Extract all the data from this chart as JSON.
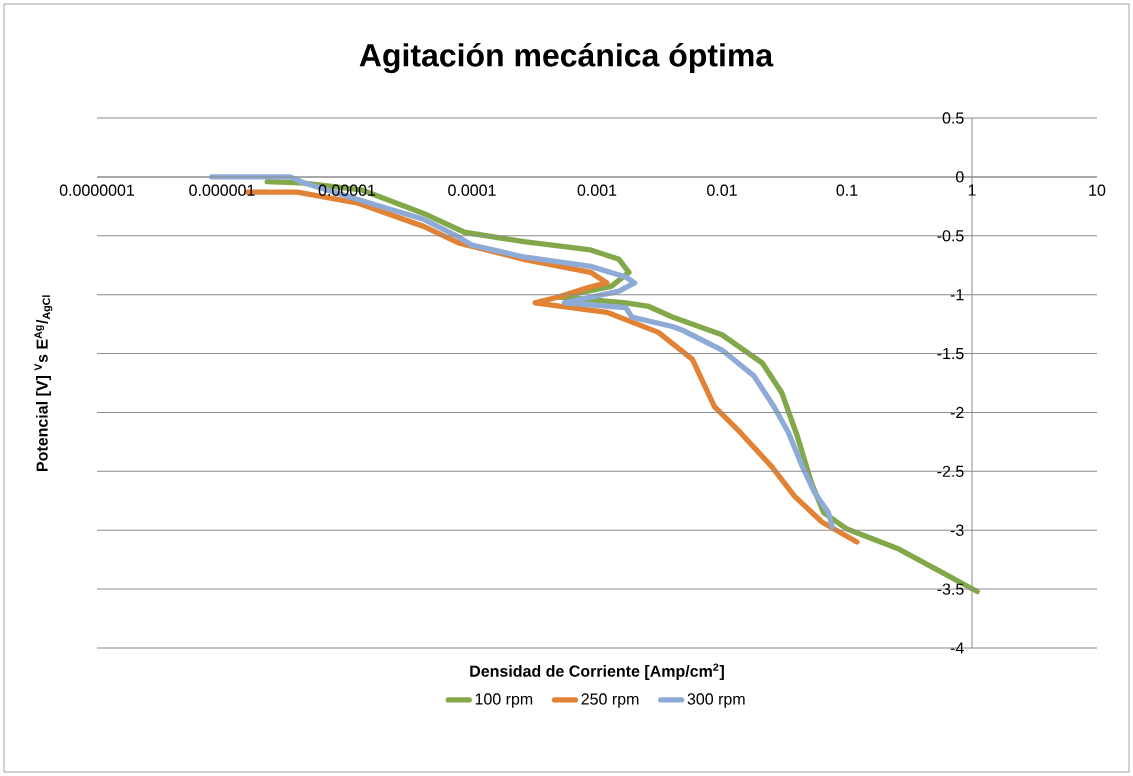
{
  "chart_data": {
    "type": "line",
    "title": "Agitación mecánica óptima",
    "xlabel": "Densidad de Corriente [Amp/cm$^{2}$]",
    "ylabel": "Potencial [V] $^{V}$s E$^{Ag}$/$_{AgCl}$",
    "log": "x",
    "grid": "y",
    "legend": "bottom",
    "marker": "none",
    "line_style": "solid",
    "xlim": [
      1e-07,
      10
    ],
    "ylim": [
      -4,
      0.5
    ],
    "xticks": [
      {
        "value": 1e-07,
        "label": "0.0000001"
      },
      {
        "value": 1e-06,
        "label": "0.000001"
      },
      {
        "value": 1e-05,
        "label": "0.00001"
      },
      {
        "value": 0.0001,
        "label": "0.0001"
      },
      {
        "value": 0.001,
        "label": "0.001"
      },
      {
        "value": 0.01,
        "label": "0.01"
      },
      {
        "value": 0.1,
        "label": "0.1"
      },
      {
        "value": 1,
        "label": "1"
      },
      {
        "value": 10,
        "label": "10"
      }
    ],
    "yticks": [
      {
        "value": 0.5,
        "label": "0.5"
      },
      {
        "value": 0,
        "label": "0"
      },
      {
        "value": -0.5,
        "label": "-0.5"
      },
      {
        "value": -1,
        "label": "-1"
      },
      {
        "value": -1.5,
        "label": "-1.5"
      },
      {
        "value": -2,
        "label": "-2"
      },
      {
        "value": -2.5,
        "label": "-2.5"
      },
      {
        "value": -3,
        "label": "-3"
      },
      {
        "value": -3.5,
        "label": "-3.5"
      },
      {
        "value": -4,
        "label": "-4"
      }
    ],
    "series": [
      {
        "name": "100 rpm",
        "color": "#82a84a",
        "x": [
          2.3e-06,
          4.3e-06,
          1.3e-05,
          4.1e-05,
          8.7e-05,
          0.00026,
          0.00089,
          0.0015,
          0.0018,
          0.0013,
          0.00049,
          0.0017,
          0.0026,
          0.004,
          0.01,
          0.021,
          0.03,
          0.04,
          0.052,
          0.065,
          0.1,
          0.26,
          0.58,
          1.1
        ],
        "values": [
          -0.04,
          -0.05,
          -0.11,
          -0.31,
          -0.47,
          -0.55,
          -0.62,
          -0.7,
          -0.81,
          -0.93,
          -1.02,
          -1.07,
          -1.1,
          -1.19,
          -1.34,
          -1.58,
          -1.83,
          -2.2,
          -2.6,
          -2.85,
          -2.99,
          -3.16,
          -3.36,
          -3.52
        ]
      },
      {
        "name": "250 rpm",
        "color": "#e28234",
        "x": [
          1.6e-06,
          4e-06,
          1.2e-05,
          4.1e-05,
          7.8e-05,
          0.00026,
          0.00089,
          0.0012,
          0.00085,
          0.00049,
          0.00032,
          0.0012,
          0.0031,
          0.0058,
          0.0087,
          0.014,
          0.025,
          0.038,
          0.063,
          0.12
        ],
        "values": [
          -0.13,
          -0.13,
          -0.22,
          -0.42,
          -0.56,
          -0.7,
          -0.81,
          -0.9,
          -0.94,
          -1.02,
          -1.07,
          -1.15,
          -1.32,
          -1.55,
          -1.95,
          -2.17,
          -2.46,
          -2.71,
          -2.93,
          -3.1
        ]
      },
      {
        "name": "300 rpm",
        "color": "#8eaad6",
        "x": [
          8.3e-07,
          3.5e-06,
          4.5e-06,
          1.2e-05,
          4.1e-05,
          7.8e-05,
          0.0001,
          0.00026,
          0.00089,
          0.0017,
          0.002,
          0.0015,
          0.00055,
          0.0017,
          0.0019,
          0.004,
          0.0048,
          0.01,
          0.018,
          0.026,
          0.034,
          0.044,
          0.055,
          0.071,
          0.076
        ],
        "values": [
          0,
          0,
          -0.05,
          -0.19,
          -0.36,
          -0.51,
          -0.58,
          -0.68,
          -0.76,
          -0.85,
          -0.9,
          -0.97,
          -1.07,
          -1.11,
          -1.19,
          -1.27,
          -1.3,
          -1.47,
          -1.69,
          -1.95,
          -2.17,
          -2.46,
          -2.68,
          -2.85,
          -2.97
        ]
      }
    ]
  }
}
